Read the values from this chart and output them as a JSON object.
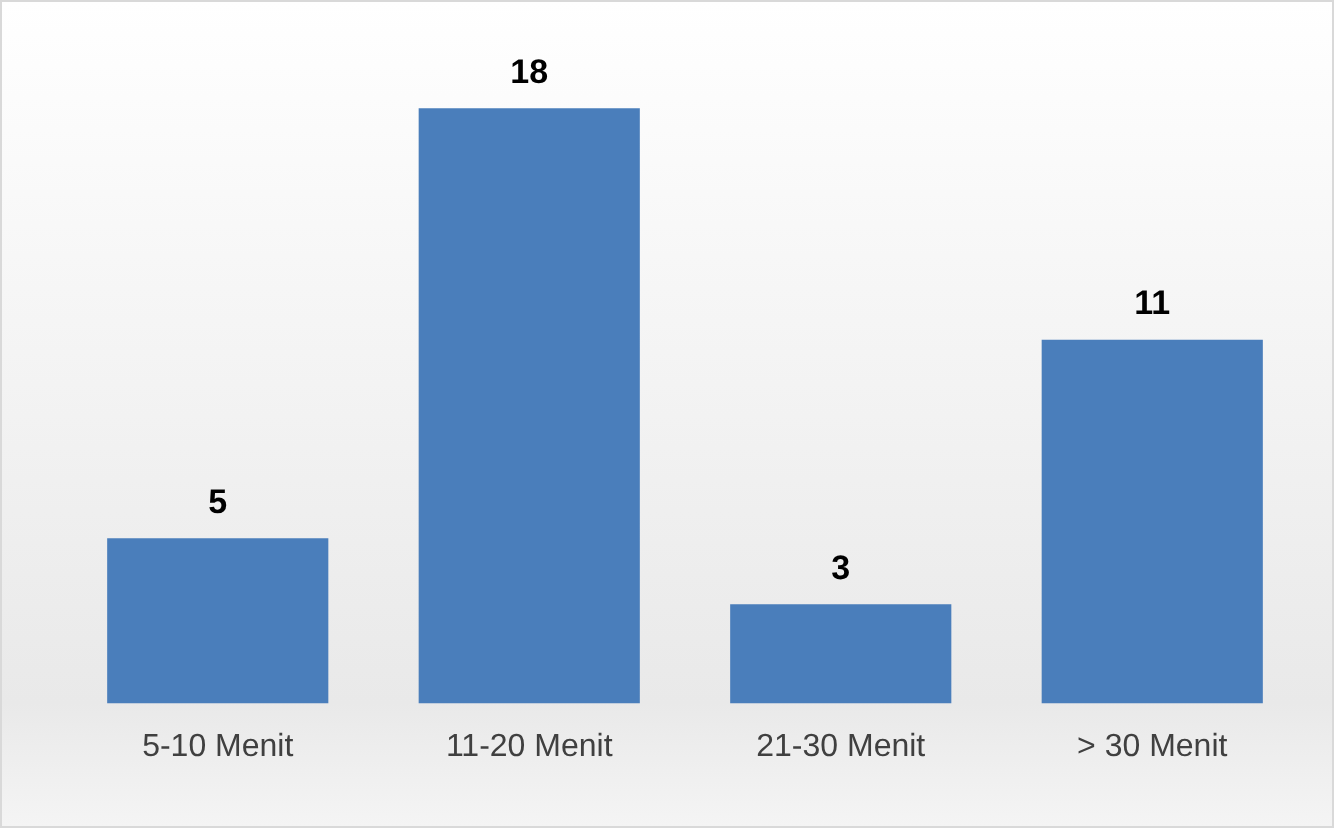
{
  "chart_data": {
    "type": "bar",
    "categories": [
      "5-10 Menit",
      "11-20 Menit",
      "21-30 Menit",
      "> 30 Menit"
    ],
    "values": [
      5,
      18,
      3,
      11
    ],
    "color": "#4a7ebb",
    "data_labels": true,
    "grid": false,
    "legend": false
  }
}
